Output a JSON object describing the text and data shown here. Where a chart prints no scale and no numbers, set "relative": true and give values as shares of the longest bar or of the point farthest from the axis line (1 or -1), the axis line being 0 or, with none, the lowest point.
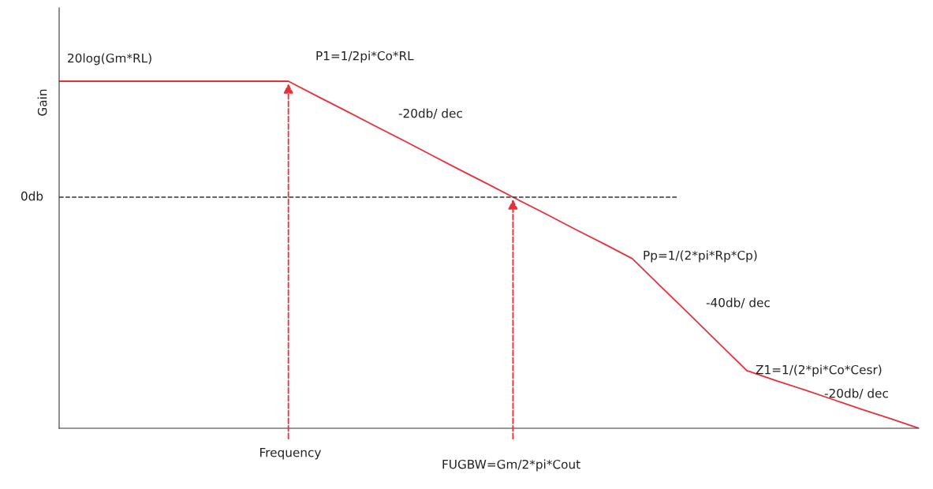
{
  "chart_data": {
    "type": "line",
    "relative": true,
    "xlabel": "Frequency",
    "ylabel": "Gain",
    "categories": [
      null,
      null,
      null,
      null,
      null,
      null,
      null,
      null,
      null,
      null,
      null,
      null,
      null,
      null,
      null,
      null,
      null,
      null,
      null,
      null,
      null,
      null,
      null,
      null,
      null,
      null,
      null,
      null,
      null,
      null,
      null
    ],
    "series": [
      {
        "color": "#e8303a",
        "values": [
          1,
          1,
          1,
          1,
          1,
          1,
          1,
          1,
          1,
          0.957,
          0.915,
          0.872,
          0.83,
          0.787,
          0.744,
          0.702,
          0.659,
          0.617,
          0.574,
          0.532,
          0.489,
          0.408,
          0.328,
          0.247,
          0.166,
          0.138,
          0.111,
          0.083,
          0.055,
          0.028,
          0
        ]
      }
    ],
    "ref_lines": [
      {
        "axis": "y",
        "value": 0.666,
        "label": "0db",
        "color": "#333333",
        "line_style": "dashed"
      }
    ],
    "annotations": [
      "20log(Gm*RL)",
      "-20db/ dec",
      "Pp=1/(2*pi*Rp*Cp)",
      "-40db/ dec",
      "Z1=1/(2*pi*Co*Cesr)",
      "-20db/ dec",
      "P1=1/2pi*Co*RL",
      "FUGBW=Gm/2*pi*Cout"
    ],
    "grid": false,
    "marker": "none",
    "line_style": "solid"
  }
}
